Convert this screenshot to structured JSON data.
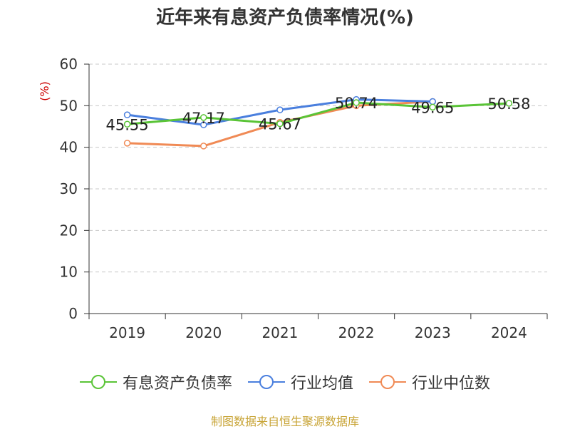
{
  "title": "近年来有息资产负债率情况(%)",
  "source_note": "制图数据来自恒生聚源数据库",
  "chart_data": {
    "type": "line",
    "title": "近年来有息资产负债率情况(%)",
    "xlabel": "",
    "ylabel": "(%)",
    "categories": [
      "2019",
      "2020",
      "2021",
      "2022",
      "2023",
      "2024"
    ],
    "ylim": [
      0,
      60
    ],
    "yticks": [
      0,
      10,
      20,
      30,
      40,
      50,
      60
    ],
    "grid": "horizontal dashed",
    "legend_position": "bottom",
    "series": [
      {
        "name": "有息资产负债率",
        "color": "#5ac437",
        "values": [
          45.55,
          47.17,
          45.67,
          50.74,
          49.65,
          50.58
        ],
        "labels": [
          "45.55",
          "47.17",
          "45.67",
          "50.74",
          "49.65",
          "50.58"
        ]
      },
      {
        "name": "行业均值",
        "color": "#4a7fde",
        "values": [
          47.8,
          45.4,
          49.0,
          51.5,
          51.0,
          null
        ]
      },
      {
        "name": "行业中位数",
        "color": "#f08a55",
        "values": [
          41.0,
          40.3,
          46.0,
          50.0,
          51.0,
          null
        ]
      }
    ]
  }
}
